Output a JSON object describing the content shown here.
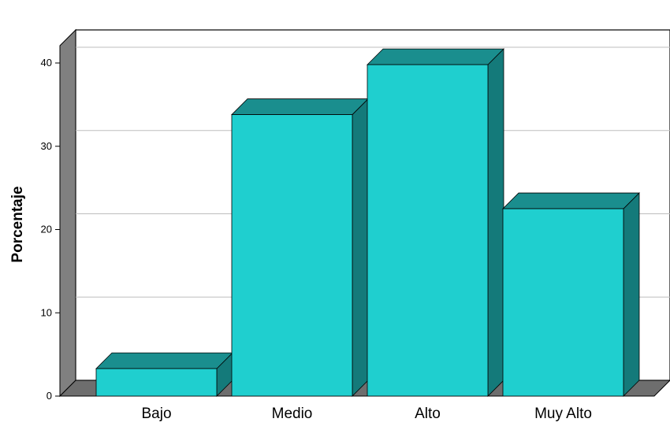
{
  "chart_data": {
    "type": "bar",
    "categories": [
      "Bajo",
      "Medio",
      "Alto",
      "Muy Alto"
    ],
    "values": [
      3.3,
      33.8,
      39.8,
      22.5
    ],
    "ylabel": "Porcentaje",
    "xlabel": "",
    "ylim": [
      0,
      40
    ],
    "yticks": [
      0,
      10,
      20,
      30,
      40
    ],
    "grid": true,
    "style": "3d",
    "colors": {
      "bar_front": "#1fcfcf",
      "bar_side": "#147a7a",
      "bar_top": "#1a8e8e",
      "floor": "#6e6e6e",
      "wall": "#808080"
    }
  }
}
